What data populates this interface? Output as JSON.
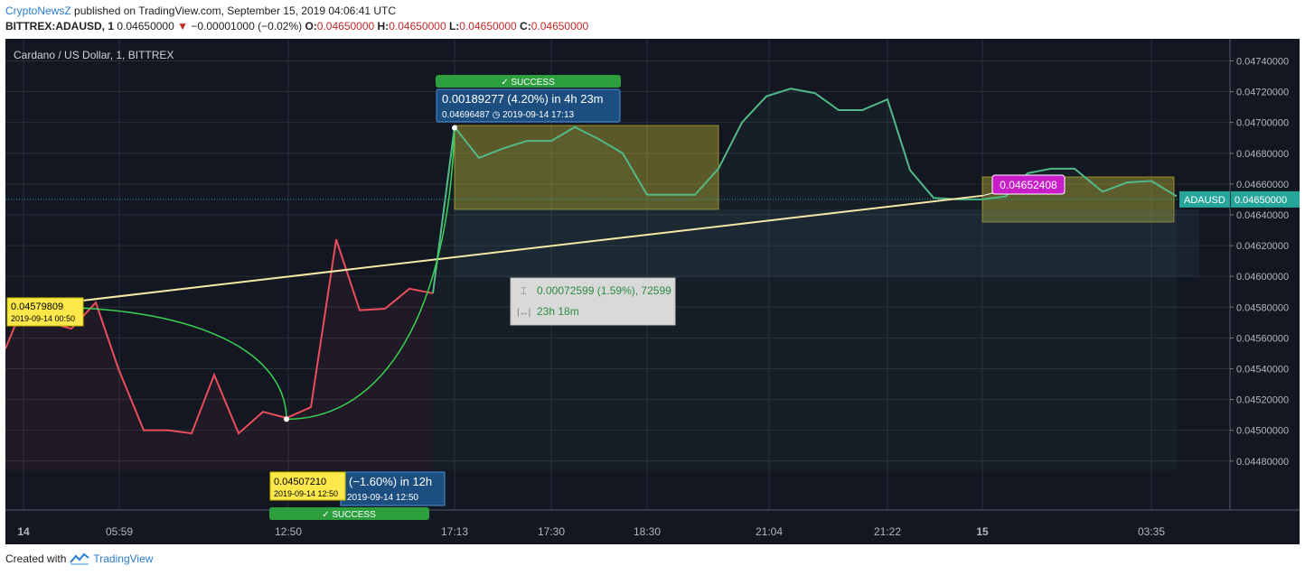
{
  "header": {
    "author": "CryptoNewsZ",
    "published": "published on TradingView.com, September 15, 2019 04:06:41 UTC",
    "symbol": "BITTREX:ADAUSD, 1",
    "last": "0.04650000",
    "change_arrow": "▼",
    "change": "−0.00001000 (−0.02%)",
    "o_label": "O:",
    "o_value": "0.04650000",
    "h_label": "H:",
    "h_value": "0.04650000",
    "l_label": "L:",
    "l_value": "0.04650000",
    "c_label": "C:",
    "c_value": "0.04650000"
  },
  "footer": {
    "created_with": "Created with",
    "brand": "TradingView",
    "logo_icon": "tradingview-logo-icon"
  },
  "colors": {
    "background": "#131722",
    "grid": "#2a2e39",
    "up": "#53b987",
    "down": "#eb4d5c",
    "trend_line": "#f5e9a6",
    "arrow": "#39d353",
    "success_green": "#2e9f3e",
    "label_blue": "#1c4f80",
    "yellow_label": "#fce84a",
    "magenta_label": "#c81dc8",
    "price_tag": "#26a69a"
  },
  "chart_data": {
    "type": "line",
    "title": "Cardano / US Dollar, 1, BITTREX",
    "y_tick_labels": [
      "0.04740000",
      "0.04720000",
      "0.04700000",
      "0.04680000",
      "0.04660000",
      "0.04640000",
      "0.04620000",
      "0.04600000",
      "0.04580000",
      "0.04560000",
      "0.04540000",
      "0.04520000",
      "0.04500000",
      "0.04480000"
    ],
    "y_ticks": [
      0.0474,
      0.0472,
      0.047,
      0.0468,
      0.0466,
      0.0464,
      0.0462,
      0.046,
      0.0458,
      0.0456,
      0.0454,
      0.0452,
      0.045,
      0.0448
    ],
    "ylim": [
      0.04474,
      0.04752
    ],
    "x_tick_labels": [
      "14",
      "05:59",
      "12:50",
      "17:13",
      "17:30",
      "18:30",
      "21:04",
      "21:22",
      "15",
      "03:35"
    ],
    "current_price_label": "ADAUSD",
    "current_price": "0.04650000",
    "current_price_value": 0.0465,
    "series": [
      {
        "color": "#eb4d5c",
        "points": [
          [
            0,
            0.04553
          ],
          [
            19,
            0.0458
          ],
          [
            42,
            0.04571
          ],
          [
            73,
            0.04566
          ],
          [
            100,
            0.04583
          ],
          [
            125,
            0.0454
          ],
          [
            153,
            0.045
          ],
          [
            180,
            0.045
          ],
          [
            206,
            0.04498
          ],
          [
            231,
            0.04536
          ],
          [
            258,
            0.04498
          ],
          [
            285,
            0.04512
          ],
          [
            311,
            0.04508
          ],
          [
            338,
            0.04515
          ],
          [
            366,
            0.04624
          ],
          [
            392,
            0.04578
          ],
          [
            420,
            0.04579
          ],
          [
            447,
            0.04592
          ],
          [
            473,
            0.04589
          ]
        ]
      },
      {
        "color": "#53b987",
        "points": [
          [
            473,
            0.04589
          ],
          [
            497,
            0.04697
          ],
          [
            524,
            0.04677
          ],
          [
            550,
            0.04683
          ],
          [
            577,
            0.04688
          ],
          [
            604,
            0.04688
          ],
          [
            630,
            0.04697
          ],
          [
            657,
            0.04689
          ],
          [
            683,
            0.0468
          ],
          [
            710,
            0.04653
          ],
          [
            737,
            0.04653
          ],
          [
            763,
            0.04653
          ],
          [
            789,
            0.0467
          ],
          [
            815,
            0.047
          ],
          [
            842,
            0.04717
          ],
          [
            869,
            0.04722
          ],
          [
            896,
            0.04719
          ],
          [
            922,
            0.04708
          ],
          [
            948,
            0.04708
          ],
          [
            976,
            0.04715
          ],
          [
            1001,
            0.04669
          ],
          [
            1027,
            0.04651
          ],
          [
            1054,
            0.0465
          ],
          [
            1081,
            0.0465
          ],
          [
            1107,
            0.04652
          ],
          [
            1131,
            0.04667
          ],
          [
            1157,
            0.0467
          ],
          [
            1183,
            0.0467
          ],
          [
            1214,
            0.04655
          ],
          [
            1241,
            0.04661
          ],
          [
            1268,
            0.04662
          ],
          [
            1296,
            0.04652
          ]
        ]
      }
    ],
    "annotations": {
      "low_point_label": "0.04579809",
      "low_point_date": "2019-09-14 00:50",
      "drop_point_label": "0.04507210",
      "drop_point_date": "2019-09-14 12:50",
      "drop_change": "(−1.60%) in 12h",
      "drop_change_date": "2019-09-14  12:50",
      "drop_success": "SUCCESS",
      "high_change": "0.00189277 (4.20%) in 4h 23m",
      "high_price": "0.04696487",
      "high_date": "2019-09-14  17:13",
      "high_success": "SUCCESS",
      "success_check": "✓",
      "trend_end_label": "0.04652408",
      "measure_change": "0.00072599 (1.59%), 72599",
      "measure_time": "23h 18m",
      "trend_start_value": 0.04579809,
      "trend_end_value": 0.04652408
    }
  }
}
